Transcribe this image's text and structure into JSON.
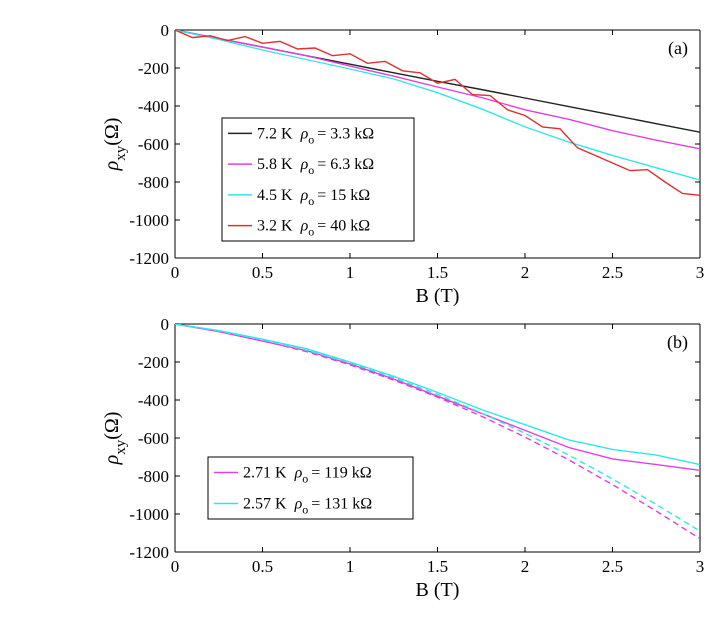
{
  "chart_data": [
    {
      "type": "line",
      "panel_label": "(a)",
      "xlabel": "B (T)",
      "ylabel_symbol": "ρ",
      "ylabel_sub": "xy",
      "ylabel_unit": "(Ω)",
      "xlim": [
        0,
        3
      ],
      "ylim": [
        -1200,
        0
      ],
      "x_ticks": [
        0,
        0.5,
        1,
        1.5,
        2,
        2.5,
        3
      ],
      "x_tick_labels": [
        "0",
        "0.5",
        "1",
        "1.5",
        "2",
        "2.5",
        "3"
      ],
      "y_ticks": [
        0,
        -200,
        -400,
        -600,
        -800,
        -1000,
        -1200
      ],
      "y_tick_labels": [
        "0",
        "-200",
        "-400",
        "-600",
        "-800",
        "-1000",
        "-1200"
      ],
      "grid": false,
      "legend_position": "left",
      "series": [
        {
          "name": "7.2 K",
          "rho_o": "3.3 kΩ",
          "color": "#222222",
          "style": "solid",
          "x": [
            0,
            0.25,
            0.5,
            0.75,
            1,
            1.25,
            1.5,
            1.75,
            2,
            2.25,
            2.5,
            2.75,
            3
          ],
          "y": [
            0,
            -45,
            -90,
            -135,
            -180,
            -225,
            -270,
            -313,
            -358,
            -403,
            -448,
            -493,
            -538
          ]
        },
        {
          "name": "5.8 K",
          "rho_o": "6.3 kΩ",
          "color": "#e040e0",
          "style": "solid",
          "x": [
            0,
            0.25,
            0.5,
            0.75,
            1,
            1.25,
            1.5,
            1.75,
            2,
            2.25,
            2.5,
            2.75,
            3
          ],
          "y": [
            0,
            -45,
            -90,
            -135,
            -190,
            -243,
            -300,
            -355,
            -420,
            -470,
            -530,
            -580,
            -625
          ]
        },
        {
          "name": "4.5 K",
          "rho_o": "15 kΩ",
          "color": "#33e6e6",
          "style": "solid",
          "x": [
            0,
            0.25,
            0.5,
            0.75,
            1,
            1.25,
            1.5,
            1.75,
            2,
            2.25,
            2.5,
            2.75,
            3
          ],
          "y": [
            0,
            -50,
            -105,
            -155,
            -205,
            -258,
            -330,
            -415,
            -510,
            -590,
            -660,
            -725,
            -790
          ]
        },
        {
          "name": "3.2 K",
          "rho_o": "40 kΩ",
          "color": "#e03030",
          "style": "solid",
          "x": [
            0,
            0.1,
            0.2,
            0.3,
            0.4,
            0.5,
            0.6,
            0.7,
            0.8,
            0.9,
            1,
            1.1,
            1.2,
            1.3,
            1.4,
            1.5,
            1.6,
            1.7,
            1.8,
            1.9,
            2,
            2.1,
            2.2,
            2.3,
            2.4,
            2.5,
            2.6,
            2.7,
            2.8,
            2.9,
            3
          ],
          "y": [
            0,
            -40,
            -30,
            -55,
            -35,
            -70,
            -60,
            -100,
            -95,
            -135,
            -125,
            -175,
            -165,
            -215,
            -225,
            -280,
            -260,
            -340,
            -345,
            -420,
            -450,
            -510,
            -520,
            -620,
            -660,
            -700,
            -740,
            -735,
            -800,
            -860,
            -870
          ]
        }
      ]
    },
    {
      "type": "line",
      "panel_label": "(b)",
      "xlabel": "B (T)",
      "ylabel_symbol": "ρ",
      "ylabel_sub": "xy",
      "ylabel_unit": "(Ω)",
      "xlim": [
        0,
        3
      ],
      "ylim": [
        -1200,
        0
      ],
      "x_ticks": [
        0,
        0.5,
        1,
        1.5,
        2,
        2.5,
        3
      ],
      "x_tick_labels": [
        "0",
        "0.5",
        "1",
        "1.5",
        "2",
        "2.5",
        "3"
      ],
      "y_ticks": [
        0,
        -200,
        -400,
        -600,
        -800,
        -1000,
        -1200
      ],
      "y_tick_labels": [
        "0",
        "-200",
        "-400",
        "-600",
        "-800",
        "-1000",
        "-1200"
      ],
      "grid": false,
      "legend_position": "bottom-left",
      "series": [
        {
          "name": "2.71 K",
          "rho_o": "119 kΩ",
          "color": "#e040e0",
          "style": "solid",
          "x": [
            0,
            0.25,
            0.5,
            0.75,
            1,
            1.25,
            1.5,
            1.75,
            2,
            2.25,
            2.5,
            2.75,
            3
          ],
          "y": [
            0,
            -40,
            -90,
            -140,
            -210,
            -290,
            -380,
            -470,
            -560,
            -650,
            -710,
            -740,
            -770
          ]
        },
        {
          "name": "2.57 K",
          "rho_o": "131 kΩ",
          "color": "#33e6e6",
          "style": "solid",
          "x": [
            0,
            0.25,
            0.5,
            0.75,
            1,
            1.25,
            1.5,
            1.75,
            2,
            2.25,
            2.5,
            2.75,
            3
          ],
          "y": [
            0,
            -35,
            -80,
            -130,
            -200,
            -275,
            -360,
            -450,
            -530,
            -610,
            -660,
            -690,
            -740
          ]
        },
        {
          "name": "",
          "color": "#e040e0",
          "style": "dashed",
          "x": [
            0,
            0.25,
            0.5,
            0.75,
            1,
            1.25,
            1.5,
            1.75,
            2,
            2.25,
            2.5,
            2.75,
            3
          ],
          "y": [
            0,
            -40,
            -88,
            -145,
            -215,
            -295,
            -385,
            -485,
            -595,
            -715,
            -845,
            -985,
            -1130
          ]
        },
        {
          "name": "",
          "color": "#33e6e6",
          "style": "dashed",
          "x": [
            0,
            0.25,
            0.5,
            0.75,
            1,
            1.25,
            1.5,
            1.75,
            2,
            2.25,
            2.5,
            2.75,
            3
          ],
          "y": [
            0,
            -37,
            -83,
            -138,
            -205,
            -283,
            -370,
            -468,
            -575,
            -690,
            -815,
            -950,
            -1090
          ]
        }
      ]
    }
  ]
}
